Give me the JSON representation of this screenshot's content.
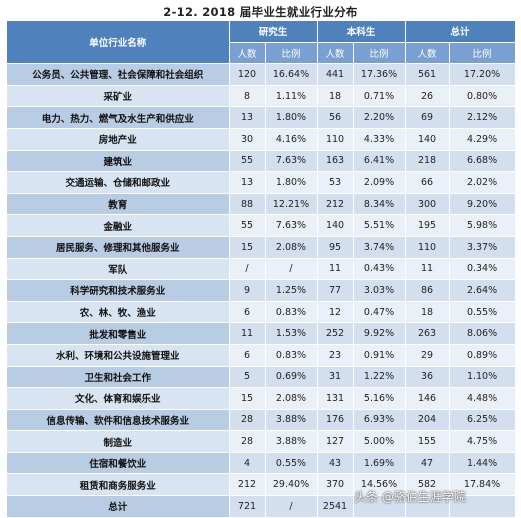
{
  "title": "2-12. 2018 届毕业生就业行业分布",
  "header": {
    "row_label": "单位行业名称",
    "groups": [
      "研究生",
      "本科生",
      "总计"
    ],
    "sub": [
      "人数",
      "比例",
      "人数",
      "比例",
      "人数",
      "比例"
    ]
  },
  "rows": [
    {
      "name": "公务员、公共管理、社会保障和社会组织",
      "v": [
        "120",
        "16.64%",
        "441",
        "17.36%",
        "561",
        "17.20%"
      ]
    },
    {
      "name": "采矿业",
      "v": [
        "8",
        "1.11%",
        "18",
        "0.71%",
        "26",
        "0.80%"
      ]
    },
    {
      "name": "电力、热力、燃气及水生产和供应业",
      "v": [
        "13",
        "1.80%",
        "56",
        "2.20%",
        "69",
        "2.12%"
      ]
    },
    {
      "name": "房地产业",
      "v": [
        "30",
        "4.16%",
        "110",
        "4.33%",
        "140",
        "4.29%"
      ]
    },
    {
      "name": "建筑业",
      "v": [
        "55",
        "7.63%",
        "163",
        "6.41%",
        "218",
        "6.68%"
      ]
    },
    {
      "name": "交通运输、仓储和邮政业",
      "v": [
        "13",
        "1.80%",
        "53",
        "2.09%",
        "66",
        "2.02%"
      ]
    },
    {
      "name": "教育",
      "v": [
        "88",
        "12.21%",
        "212",
        "8.34%",
        "300",
        "9.20%"
      ]
    },
    {
      "name": "金融业",
      "v": [
        "55",
        "7.63%",
        "140",
        "5.51%",
        "195",
        "5.98%"
      ]
    },
    {
      "name": "居民服务、修理和其他服务业",
      "v": [
        "15",
        "2.08%",
        "95",
        "3.74%",
        "110",
        "3.37%"
      ]
    },
    {
      "name": "军队",
      "v": [
        "/",
        "/",
        "11",
        "0.43%",
        "11",
        "0.34%"
      ]
    },
    {
      "name": "科学研究和技术服务业",
      "v": [
        "9",
        "1.25%",
        "77",
        "3.03%",
        "86",
        "2.64%"
      ]
    },
    {
      "name": "农、林、牧、渔业",
      "v": [
        "6",
        "0.83%",
        "12",
        "0.47%",
        "18",
        "0.55%"
      ]
    },
    {
      "name": "批发和零售业",
      "v": [
        "11",
        "1.53%",
        "252",
        "9.92%",
        "263",
        "8.06%"
      ]
    },
    {
      "name": "水利、环境和公共设施管理业",
      "v": [
        "6",
        "0.83%",
        "23",
        "0.91%",
        "29",
        "0.89%"
      ]
    },
    {
      "name": "卫生和社会工作",
      "v": [
        "5",
        "0.69%",
        "31",
        "1.22%",
        "36",
        "1.10%"
      ]
    },
    {
      "name": "文化、体育和娱乐业",
      "v": [
        "15",
        "2.08%",
        "131",
        "5.16%",
        "146",
        "4.48%"
      ]
    },
    {
      "name": "信息传输、软件和信息技术服务业",
      "v": [
        "28",
        "3.88%",
        "176",
        "6.93%",
        "204",
        "6.25%"
      ]
    },
    {
      "name": "制造业",
      "v": [
        "28",
        "3.88%",
        "127",
        "5.00%",
        "155",
        "4.75%"
      ]
    },
    {
      "name": "住宿和餐饮业",
      "v": [
        "4",
        "0.55%",
        "43",
        "1.69%",
        "47",
        "1.44%"
      ]
    },
    {
      "name": "租赁和商务服务业",
      "v": [
        "212",
        "29.40%",
        "370",
        "14.56%",
        "582",
        "17.84%"
      ]
    }
  ],
  "total": {
    "name": "总计",
    "v": [
      "721",
      "/",
      "2541",
      "",
      "",
      ""
    ]
  },
  "watermark": "头条 @骆伯生涯学院"
}
